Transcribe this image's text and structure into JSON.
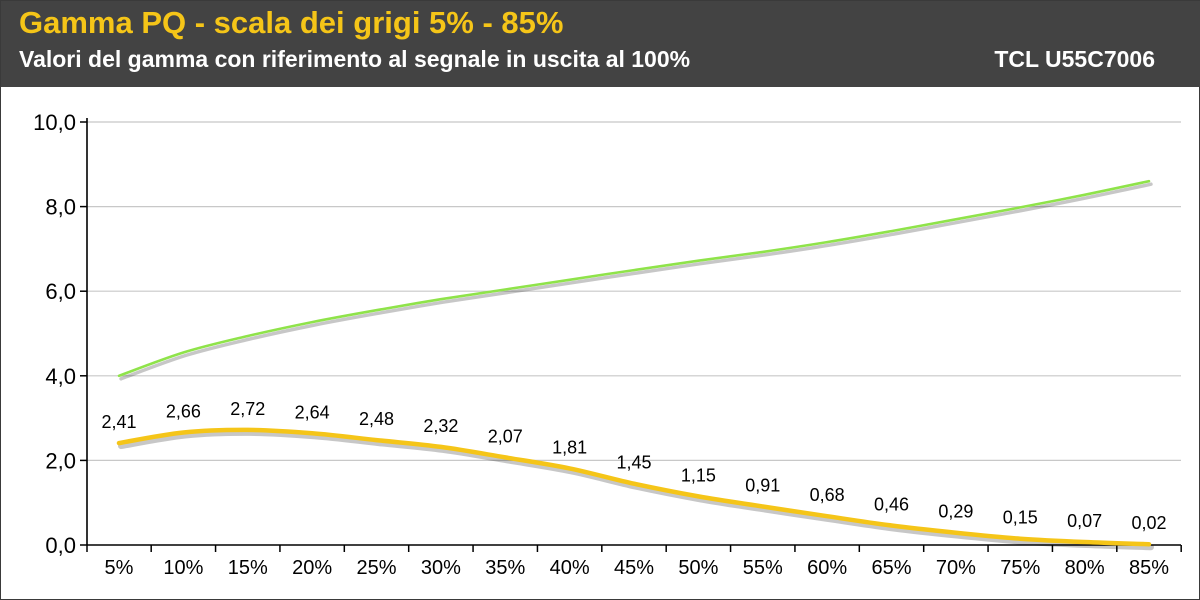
{
  "header": {
    "title": "Gamma PQ - scala dei grigi 5% - 85%",
    "subtitle": "Valori del gamma con riferimento al segnale in uscita al 100%",
    "model": "TCL U55C7006"
  },
  "colors": {
    "header_bg": "#434343",
    "title": "#f5c518",
    "measured_series": "#f5c518",
    "reference_series": "#8fe34a"
  },
  "chart_data": {
    "type": "line",
    "categories": [
      "5%",
      "10%",
      "15%",
      "20%",
      "25%",
      "30%",
      "35%",
      "40%",
      "45%",
      "50%",
      "55%",
      "60%",
      "65%",
      "70%",
      "75%",
      "80%",
      "85%"
    ],
    "series": [
      {
        "values": [
          4.0,
          4.55,
          4.94,
          5.27,
          5.55,
          5.81,
          6.04,
          6.27,
          6.5,
          6.72,
          6.93,
          7.16,
          7.42,
          7.7,
          7.98,
          8.28,
          8.6
        ],
        "color": "#8fe34a",
        "labeled": false
      },
      {
        "values": [
          2.41,
          2.66,
          2.72,
          2.64,
          2.48,
          2.32,
          2.07,
          1.81,
          1.45,
          1.15,
          0.91,
          0.68,
          0.46,
          0.29,
          0.15,
          0.07,
          0.02
        ],
        "labels": [
          "2,41",
          "2,66",
          "2,72",
          "2,64",
          "2,48",
          "2,32",
          "2,07",
          "1,81",
          "1,45",
          "1,15",
          "0,91",
          "0,68",
          "0,46",
          "0,29",
          "0,15",
          "0,07",
          "0,02"
        ],
        "color": "#f5c518",
        "labeled": true
      }
    ],
    "yticks": [
      "0,0",
      "2,0",
      "4,0",
      "6,0",
      "8,0",
      "10,0"
    ],
    "ylim": [
      0,
      10
    ],
    "grid": true,
    "legend": "none"
  }
}
